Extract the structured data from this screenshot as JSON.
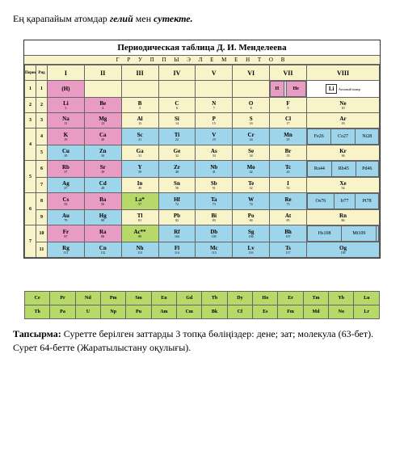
{
  "top_line": {
    "pre": "Ең қарапайым атомдар ",
    "b1": "гелий",
    "mid": " мен  ",
    "b2": "сутекте."
  },
  "table_title": "Периодическая таблица Д. И. Менделеева",
  "groups_label": "Г Р У П П Ы   Э Л Е М Е Н Т О В",
  "head": {
    "period": "Период",
    "row": "Ряд",
    "g1": "I",
    "g2": "II",
    "g3": "III",
    "g4": "IV",
    "g5": "V",
    "g6": "VI",
    "g7": "VII",
    "g8": "VIII"
  },
  "periods": [
    "1",
    "2",
    "3",
    "4",
    "5",
    "6",
    "7"
  ],
  "rows": [
    "1",
    "2",
    "3",
    "4",
    "5",
    "6",
    "7",
    "8",
    "9",
    "10",
    "11"
  ],
  "legend": {
    "box": "Li",
    "txt1": "Обозначение",
    "txt2": "Атомный номер",
    "txt3": "Относительная атомная масса"
  },
  "r1": {
    "p": "1",
    "r": "1",
    "c1": {
      "s": "(H)",
      "col": "c-pink"
    },
    "c71": {
      "s": "H",
      "n": "1",
      "col": "c-pink"
    },
    "c72": {
      "s": "",
      "n": "",
      "col": "c-gray"
    },
    "c73": {
      "s": "He",
      "n": "2",
      "col": "c-pink"
    }
  },
  "r2": {
    "p": "2",
    "r": "2",
    "c1": {
      "s": "Li",
      "n": "3",
      "col": "c-pink"
    },
    "c2": {
      "s": "Be",
      "n": "4",
      "col": "c-pink"
    },
    "c3": {
      "s": "B",
      "n": "5",
      "col": "c-yellow"
    },
    "c4": {
      "s": "C",
      "n": "6",
      "col": "c-yellow"
    },
    "c5": {
      "s": "N",
      "n": "7",
      "col": "c-yellow"
    },
    "c6": {
      "s": "O",
      "n": "8",
      "col": "c-yellow"
    },
    "c7": {
      "s": "F",
      "n": "9",
      "col": "c-yellow"
    },
    "c8": {
      "s": "Ne",
      "n": "10",
      "col": "c-yellow"
    }
  },
  "r3": {
    "p": "3",
    "r": "3",
    "c1": {
      "s": "Na",
      "n": "11",
      "col": "c-pink"
    },
    "c2": {
      "s": "Mg",
      "n": "12",
      "col": "c-pink"
    },
    "c3": {
      "s": "Al",
      "n": "13",
      "col": "c-yellow"
    },
    "c4": {
      "s": "Si",
      "n": "14",
      "col": "c-yellow"
    },
    "c5": {
      "s": "P",
      "n": "15",
      "col": "c-yellow"
    },
    "c6": {
      "s": "S",
      "n": "16",
      "col": "c-yellow"
    },
    "c7": {
      "s": "Cl",
      "n": "17",
      "col": "c-yellow"
    },
    "c8": {
      "s": "Ar",
      "n": "18",
      "col": "c-yellow"
    }
  },
  "r4": {
    "p": "4",
    "r": "4",
    "c1": {
      "s": "K",
      "n": "19",
      "col": "c-pink"
    },
    "c2": {
      "s": "Ca",
      "n": "20",
      "col": "c-pink"
    },
    "c3": {
      "s": "Sc",
      "n": "21",
      "col": "c-blue"
    },
    "c4": {
      "s": "Ti",
      "n": "22",
      "col": "c-blue"
    },
    "c5": {
      "s": "V",
      "n": "23",
      "col": "c-blue"
    },
    "c6": {
      "s": "Cr",
      "n": "24",
      "col": "c-blue"
    },
    "c7": {
      "s": "Mn",
      "n": "25",
      "col": "c-blue"
    },
    "c81": {
      "s": "Fe",
      "n": "26",
      "col": "c-blue"
    },
    "c82": {
      "s": "Co",
      "n": "27",
      "col": "c-blue"
    },
    "c83": {
      "s": "Ni",
      "n": "28",
      "col": "c-blue"
    }
  },
  "r5": {
    "r": "5",
    "c1": {
      "s": "Cu",
      "n": "29",
      "col": "c-blue"
    },
    "c2": {
      "s": "Zn",
      "n": "30",
      "col": "c-blue"
    },
    "c3": {
      "s": "Ga",
      "n": "31",
      "col": "c-yellow"
    },
    "c4": {
      "s": "Ge",
      "n": "32",
      "col": "c-yellow"
    },
    "c5": {
      "s": "As",
      "n": "33",
      "col": "c-yellow"
    },
    "c6": {
      "s": "Se",
      "n": "34",
      "col": "c-yellow"
    },
    "c7": {
      "s": "Br",
      "n": "35",
      "col": "c-yellow"
    },
    "c8": {
      "s": "Kr",
      "n": "36",
      "col": "c-yellow"
    }
  },
  "r6": {
    "p": "5",
    "r": "6",
    "c1": {
      "s": "Rb",
      "n": "37",
      "col": "c-pink"
    },
    "c2": {
      "s": "Sr",
      "n": "38",
      "col": "c-pink"
    },
    "c3": {
      "s": "Y",
      "n": "39",
      "col": "c-blue"
    },
    "c4": {
      "s": "Zr",
      "n": "40",
      "col": "c-blue"
    },
    "c5": {
      "s": "Nb",
      "n": "41",
      "col": "c-blue"
    },
    "c6": {
      "s": "Mo",
      "n": "42",
      "col": "c-blue"
    },
    "c7": {
      "s": "Tc",
      "n": "43",
      "col": "c-blue"
    },
    "c81": {
      "s": "Ru",
      "n": "44",
      "col": "c-blue"
    },
    "c82": {
      "s": "Rh",
      "n": "45",
      "col": "c-blue"
    },
    "c83": {
      "s": "Pd",
      "n": "46",
      "col": "c-blue"
    }
  },
  "r7": {
    "r": "7",
    "c1": {
      "s": "Ag",
      "n": "47",
      "col": "c-blue"
    },
    "c2": {
      "s": "Cd",
      "n": "48",
      "col": "c-blue"
    },
    "c3": {
      "s": "In",
      "n": "49",
      "col": "c-yellow"
    },
    "c4": {
      "s": "Sn",
      "n": "50",
      "col": "c-yellow"
    },
    "c5": {
      "s": "Sb",
      "n": "51",
      "col": "c-yellow"
    },
    "c6": {
      "s": "Te",
      "n": "52",
      "col": "c-yellow"
    },
    "c7": {
      "s": "I",
      "n": "53",
      "col": "c-yellow"
    },
    "c8": {
      "s": "Xe",
      "n": "54",
      "col": "c-yellow"
    }
  },
  "r8": {
    "p": "6",
    "r": "8",
    "c1": {
      "s": "Cs",
      "n": "55",
      "col": "c-pink"
    },
    "c2": {
      "s": "Ba",
      "n": "56",
      "col": "c-pink"
    },
    "c3": {
      "s": "La*",
      "n": "57",
      "col": "c-green"
    },
    "c4": {
      "s": "Hf",
      "n": "72",
      "col": "c-blue"
    },
    "c5": {
      "s": "Ta",
      "n": "73",
      "col": "c-blue"
    },
    "c6": {
      "s": "W",
      "n": "74",
      "col": "c-blue"
    },
    "c7": {
      "s": "Re",
      "n": "75",
      "col": "c-blue"
    },
    "c81": {
      "s": "Os",
      "n": "76",
      "col": "c-blue"
    },
    "c82": {
      "s": "Ir",
      "n": "77",
      "col": "c-blue"
    },
    "c83": {
      "s": "Pt",
      "n": "78",
      "col": "c-blue"
    }
  },
  "r9": {
    "r": "9",
    "c1": {
      "s": "Au",
      "n": "79",
      "col": "c-blue"
    },
    "c2": {
      "s": "Hg",
      "n": "80",
      "col": "c-blue"
    },
    "c3": {
      "s": "Tl",
      "n": "81",
      "col": "c-yellow"
    },
    "c4": {
      "s": "Pb",
      "n": "82",
      "col": "c-yellow"
    },
    "c5": {
      "s": "Bi",
      "n": "83",
      "col": "c-yellow"
    },
    "c6": {
      "s": "Po",
      "n": "84",
      "col": "c-yellow"
    },
    "c7": {
      "s": "At",
      "n": "85",
      "col": "c-yellow"
    },
    "c8": {
      "s": "Rn",
      "n": "86",
      "col": "c-yellow"
    }
  },
  "r10": {
    "p": "7",
    "r": "10",
    "c1": {
      "s": "Fr",
      "n": "87",
      "col": "c-pink"
    },
    "c2": {
      "s": "Ra",
      "n": "88",
      "col": "c-pink"
    },
    "c3": {
      "s": "Ac**",
      "n": "89",
      "col": "c-green"
    },
    "c4": {
      "s": "Rf",
      "n": "104",
      "col": "c-blue"
    },
    "c5": {
      "s": "Db",
      "n": "105",
      "col": "c-blue"
    },
    "c6": {
      "s": "Sg",
      "n": "106",
      "col": "c-blue"
    },
    "c7": {
      "s": "Bh",
      "n": "107",
      "col": "c-blue"
    },
    "c81": {
      "s": "Hs",
      "n": "108",
      "col": "c-blue"
    },
    "c82": {
      "s": "Mt",
      "n": "109",
      "col": "c-blue"
    },
    "c83": {
      "s": "",
      "n": "",
      "col": "c-blue"
    }
  },
  "r11": {
    "r": "11",
    "c1": {
      "s": "Rg",
      "n": "111",
      "col": "c-blue"
    },
    "c2": {
      "s": "Cn",
      "n": "112",
      "col": "c-blue"
    },
    "c3": {
      "s": "Nh",
      "n": "113",
      "col": "c-blue"
    },
    "c4": {
      "s": "Fl",
      "n": "114",
      "col": "c-blue"
    },
    "c5": {
      "s": "Mc",
      "n": "115",
      "col": "c-blue"
    },
    "c6": {
      "s": "Lv",
      "n": "116",
      "col": "c-blue"
    },
    "c7": {
      "s": "Ts",
      "n": "117",
      "col": "c-blue"
    },
    "c8": {
      "s": "Og",
      "n": "118",
      "col": "c-blue"
    }
  },
  "lan1": [
    "Ce",
    "Pr",
    "Nd",
    "Pm",
    "Sm",
    "Eu",
    "Gd",
    "Tb",
    "Dy",
    "Ho",
    "Er",
    "Tm",
    "Yb",
    "Lu"
  ],
  "lan2": [
    "Th",
    "Pa",
    "U",
    "Np",
    "Pu",
    "Am",
    "Cm",
    "Bk",
    "Cf",
    "Es",
    "Fm",
    "Md",
    "No",
    "Lr"
  ],
  "task": {
    "label": "Тапсырма:",
    "t1": " Суретте берілген заттарды 3 топқа бөліңіздер: дене; зат; молекула (63-бет).",
    "t2": "Сурет 64-бетте (Жаратылыстану оқулығы)."
  }
}
